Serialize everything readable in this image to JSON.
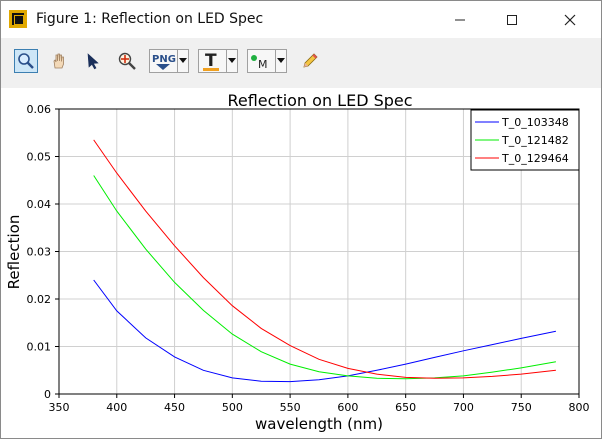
{
  "window": {
    "title": "Figure 1: Reflection on LED Spec"
  },
  "toolbar": {
    "tools": [
      {
        "name": "zoom-tool",
        "icon": "magnifier-icon",
        "active": true
      },
      {
        "name": "pan-tool",
        "icon": "hand-icon",
        "active": false
      },
      {
        "name": "select-tool",
        "icon": "arrow-cursor-icon",
        "active": false
      },
      {
        "name": "data-cursor-tool",
        "icon": "crosshair-magnifier-icon",
        "active": false
      },
      {
        "name": "export-png-tool",
        "icon": "png-icon",
        "label": "PNG",
        "dropdown": true
      },
      {
        "name": "text-tool",
        "icon": "text-icon",
        "label": "T",
        "dropdown": true
      },
      {
        "name": "marker-tool",
        "icon": "marker-icon",
        "label": "M",
        "dropdown": true
      },
      {
        "name": "pencil-tool",
        "icon": "pencil-icon",
        "active": false
      }
    ]
  },
  "chart_data": {
    "type": "line",
    "title": "Reflection on LED Spec",
    "xlabel": "wavelength (nm)",
    "ylabel": "Reflection",
    "xlim": [
      350,
      800
    ],
    "ylim": [
      0,
      0.06
    ],
    "xticks": [
      350,
      400,
      450,
      500,
      550,
      600,
      650,
      700,
      750,
      800
    ],
    "yticks": [
      0,
      0.01,
      0.02,
      0.03,
      0.04,
      0.05,
      0.06
    ],
    "xtick_labels": [
      "350",
      "400",
      "450",
      "500",
      "550",
      "600",
      "650",
      "700",
      "750",
      "800"
    ],
    "ytick_labels": [
      "0",
      "0.01",
      "0.02",
      "0.03",
      "0.04",
      "0.05",
      "0.06"
    ],
    "grid": true,
    "legend_position": "top-right",
    "series": [
      {
        "name": "T_0_103348",
        "color": "#0000ff",
        "x": [
          380,
          400,
          425,
          450,
          475,
          500,
          525,
          550,
          575,
          600,
          625,
          650,
          675,
          700,
          725,
          750,
          780
        ],
        "y": [
          0.024,
          0.0175,
          0.0118,
          0.0078,
          0.005,
          0.0034,
          0.0027,
          0.0026,
          0.003,
          0.0038,
          0.005,
          0.0063,
          0.0077,
          0.0091,
          0.0104,
          0.0117,
          0.0132
        ]
      },
      {
        "name": "T_0_121482",
        "color": "#00ee00",
        "x": [
          380,
          400,
          425,
          450,
          475,
          500,
          525,
          550,
          575,
          600,
          625,
          650,
          675,
          700,
          725,
          750,
          780
        ],
        "y": [
          0.046,
          0.0385,
          0.0305,
          0.0235,
          0.0176,
          0.0126,
          0.0089,
          0.0063,
          0.0047,
          0.0038,
          0.0033,
          0.0032,
          0.0034,
          0.0038,
          0.0046,
          0.0055,
          0.0068
        ]
      },
      {
        "name": "T_0_129464",
        "color": "#ff0000",
        "x": [
          380,
          400,
          425,
          450,
          475,
          500,
          525,
          550,
          575,
          600,
          625,
          650,
          675,
          700,
          725,
          750,
          780
        ],
        "y": [
          0.0535,
          0.0465,
          0.0385,
          0.0312,
          0.0245,
          0.0186,
          0.0138,
          0.0102,
          0.0073,
          0.0054,
          0.0042,
          0.0035,
          0.0033,
          0.0034,
          0.0037,
          0.0042,
          0.005
        ]
      }
    ]
  }
}
